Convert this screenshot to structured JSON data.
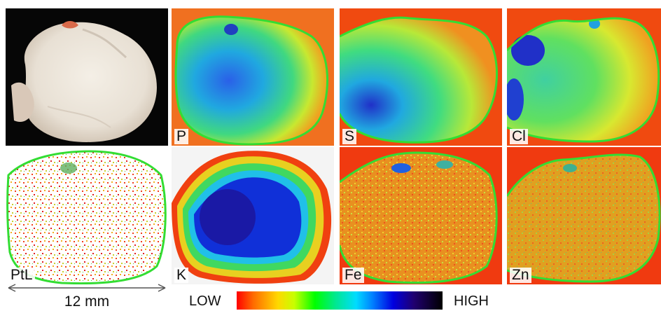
{
  "panels": [
    {
      "id": "photo",
      "label": "",
      "map": "photo"
    },
    {
      "id": "p",
      "label": "P",
      "map": "P"
    },
    {
      "id": "s",
      "label": "S",
      "map": "S"
    },
    {
      "id": "cl",
      "label": "Cl",
      "map": "Cl"
    },
    {
      "id": "ptl",
      "label": "PtL",
      "map": "PtL"
    },
    {
      "id": "k",
      "label": "K",
      "map": "K"
    },
    {
      "id": "fe",
      "label": "Fe",
      "map": "Fe"
    },
    {
      "id": "zn",
      "label": "Zn",
      "map": "Zn"
    }
  ],
  "scale_bar": {
    "text": "12 mm"
  },
  "colorbar": {
    "low": "LOW",
    "high": "HIGH",
    "colors": [
      "#ff0000",
      "#ffd800",
      "#00ff00",
      "#00dcff",
      "#0000e0",
      "#000000"
    ]
  },
  "outline_color": "#33dd33"
}
